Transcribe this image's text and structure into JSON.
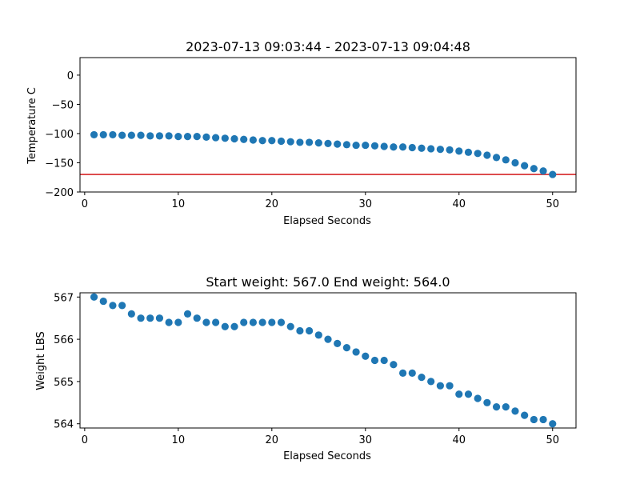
{
  "chart_data": [
    {
      "type": "scatter",
      "title": "2023-07-13 09:03:44 - 2023-07-13 09:04:48",
      "xlabel": "Elapsed Seconds",
      "ylabel": "Temperature C",
      "xlim": [
        -0.5,
        52.5
      ],
      "ylim": [
        -200,
        30
      ],
      "xticks": [
        0,
        10,
        20,
        30,
        40,
        50
      ],
      "yticks": [
        0,
        -50,
        -100,
        -150,
        -200
      ],
      "grid": false,
      "marker_color": "#1f77b4",
      "reference_line": {
        "y": -170,
        "color": "#d62728"
      },
      "x": [
        1,
        2,
        3,
        4,
        5,
        6,
        7,
        8,
        9,
        10,
        11,
        12,
        13,
        14,
        15,
        16,
        17,
        18,
        19,
        20,
        21,
        22,
        23,
        24,
        25,
        26,
        27,
        28,
        29,
        30,
        31,
        32,
        33,
        34,
        35,
        36,
        37,
        38,
        39,
        40,
        41,
        42,
        43,
        44,
        45,
        46,
        47,
        48,
        49,
        50
      ],
      "y": [
        -102,
        -102,
        -102,
        -103,
        -103,
        -103,
        -104,
        -104,
        -104,
        -105,
        -105,
        -105,
        -106,
        -107,
        -108,
        -109,
        -110,
        -111,
        -112,
        -112,
        -113,
        -114,
        -115,
        -115,
        -116,
        -117,
        -118,
        -119,
        -120,
        -120,
        -121,
        -122,
        -123,
        -123,
        -124,
        -125,
        -126,
        -127,
        -128,
        -130,
        -132,
        -134,
        -137,
        -141,
        -145,
        -150,
        -155,
        -160,
        -164,
        -170
      ]
    },
    {
      "type": "scatter",
      "title": "Start weight: 567.0 End weight: 564.0",
      "xlabel": "Elapsed Seconds",
      "ylabel": "Weight LBS",
      "xlim": [
        -0.5,
        52.5
      ],
      "ylim": [
        563.9,
        567.1
      ],
      "xticks": [
        0,
        10,
        20,
        30,
        40,
        50
      ],
      "yticks": [
        567,
        566,
        565,
        564
      ],
      "grid": false,
      "marker_color": "#1f77b4",
      "x": [
        1,
        2,
        3,
        4,
        5,
        6,
        7,
        8,
        9,
        10,
        11,
        12,
        13,
        14,
        15,
        16,
        17,
        18,
        19,
        20,
        21,
        22,
        23,
        24,
        25,
        26,
        27,
        28,
        29,
        30,
        31,
        32,
        33,
        34,
        35,
        36,
        37,
        38,
        39,
        40,
        41,
        42,
        43,
        44,
        45,
        46,
        47,
        48,
        49,
        50
      ],
      "y": [
        567.0,
        566.9,
        566.8,
        566.8,
        566.6,
        566.5,
        566.5,
        566.5,
        566.4,
        566.4,
        566.6,
        566.5,
        566.4,
        566.4,
        566.3,
        566.3,
        566.4,
        566.4,
        566.4,
        566.4,
        566.4,
        566.3,
        566.2,
        566.2,
        566.1,
        566.0,
        565.9,
        565.8,
        565.7,
        565.6,
        565.5,
        565.5,
        565.4,
        565.2,
        565.2,
        565.1,
        565.0,
        564.9,
        564.9,
        564.7,
        564.7,
        564.6,
        564.5,
        564.4,
        564.4,
        564.3,
        564.2,
        564.1,
        564.1,
        564.0
      ]
    }
  ]
}
